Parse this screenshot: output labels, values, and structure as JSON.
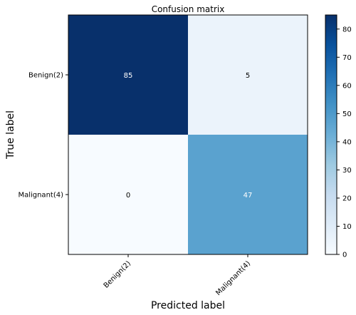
{
  "chart_data": {
    "type": "heatmap",
    "title": "Confusion matrix",
    "xlabel": "Predicted label",
    "ylabel": "True label",
    "x_categories": [
      "Benign(2)",
      "Malignant(4)"
    ],
    "y_categories": [
      "Benign(2)",
      "Malignant(4)"
    ],
    "values": [
      [
        85,
        5
      ],
      [
        0,
        47
      ]
    ],
    "colorbar": {
      "min": 0,
      "max": 85,
      "ticks": [
        0,
        10,
        20,
        30,
        40,
        50,
        60,
        70,
        80
      ]
    },
    "colormap": "Blues",
    "grid": false,
    "legend": "right"
  },
  "colors": {
    "blues": [
      "#f7fbff",
      "#deebf7",
      "#c6dbef",
      "#9ecae1",
      "#6baed6",
      "#4292c6",
      "#2171b5",
      "#08519c",
      "#08306b"
    ],
    "text_dark": "#000000",
    "text_light": "#ffffff",
    "frame": "#000000"
  }
}
